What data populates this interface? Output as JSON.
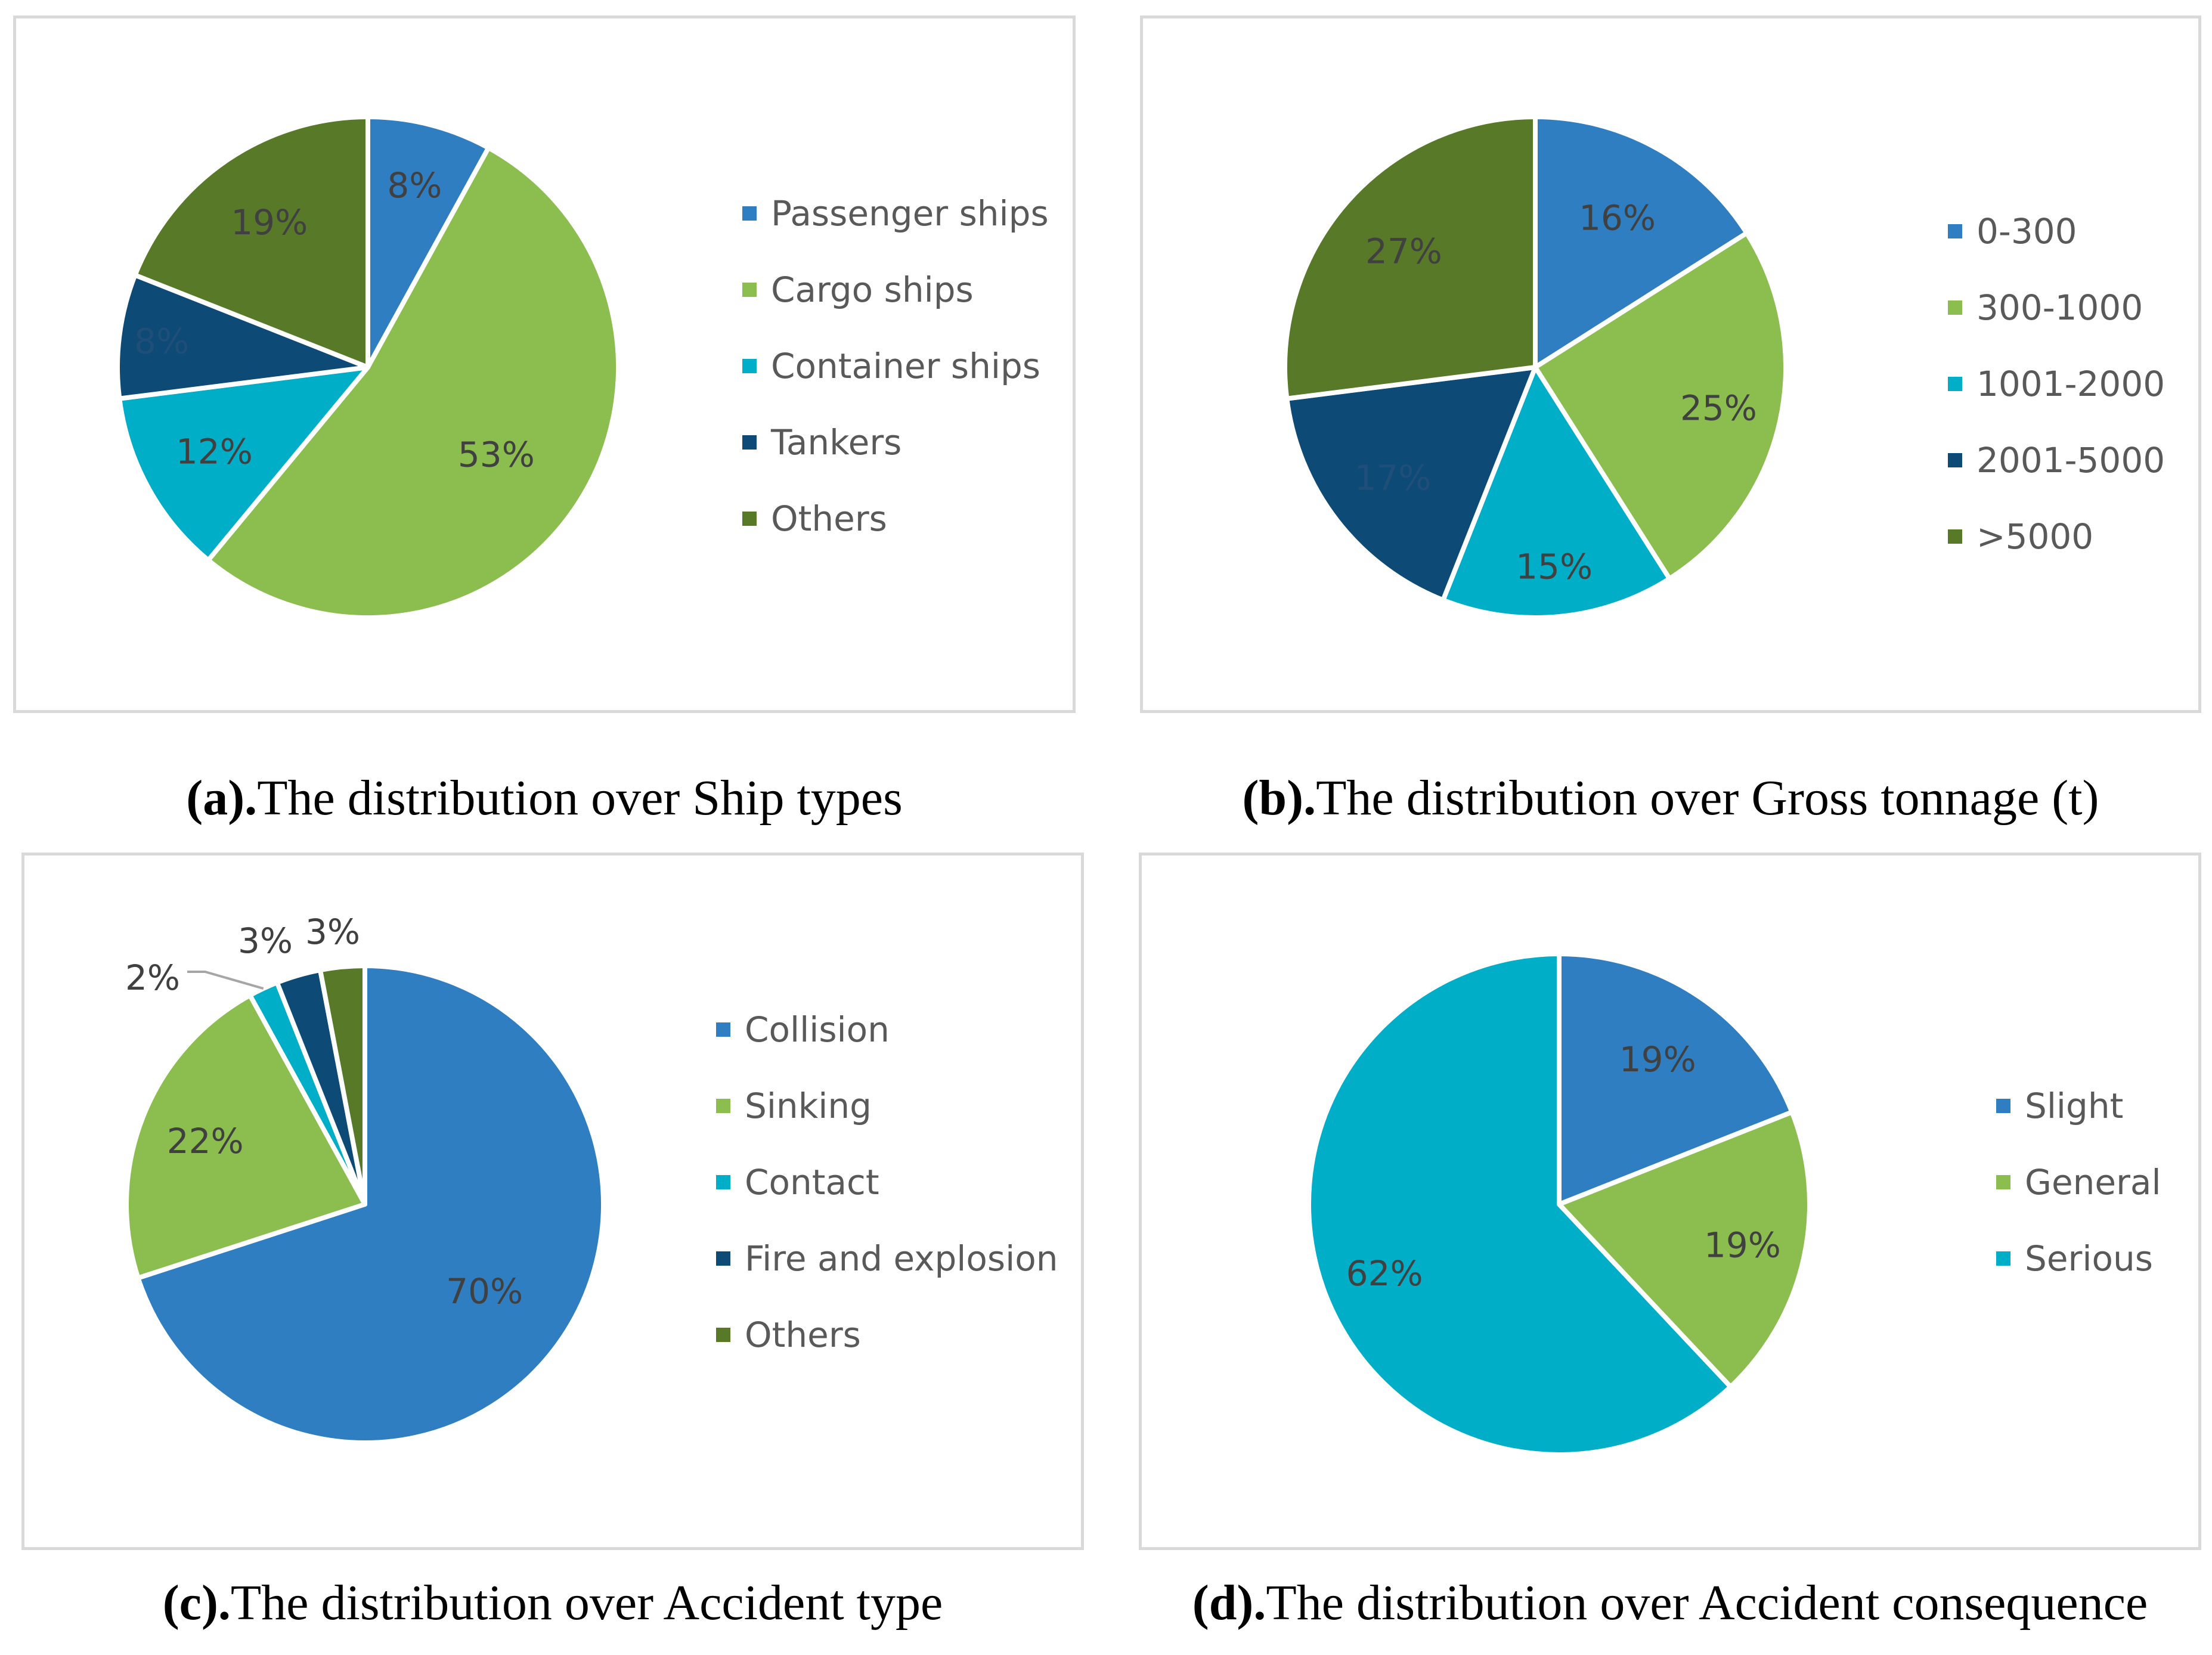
{
  "chart_data": [
    {
      "type": "pie",
      "caption_prefix": "(a).",
      "caption_text": "The distribution over Ship types",
      "categories": [
        "Passenger ships",
        "Cargo ships",
        "Container ships",
        "Tankers",
        "Others"
      ],
      "values": [
        8,
        53,
        12,
        8,
        19
      ],
      "labels": [
        "8%",
        "53%",
        "12%",
        "8%",
        "19%"
      ],
      "colors": [
        "#2e7ec1",
        "#8bbd4f",
        "#00aec7",
        "#0d4a75",
        "#577928"
      ],
      "label_colors": [
        "#404040",
        "#404040",
        "#404040",
        "#1f4e79",
        "#404040"
      ],
      "legend_position": "right"
    },
    {
      "type": "pie",
      "caption_prefix": "(b).",
      "caption_text": "The distribution over Gross tonnage (t)",
      "categories": [
        "0-300",
        "300-1000",
        "1001-2000",
        "2001-5000",
        ">5000"
      ],
      "values": [
        16,
        25,
        15,
        17,
        27
      ],
      "labels": [
        "16%",
        "25%",
        "15%",
        "17%",
        "27%"
      ],
      "colors": [
        "#2e7ec1",
        "#8bbd4f",
        "#00aec7",
        "#0d4a75",
        "#577928"
      ],
      "label_colors": [
        "#404040",
        "#404040",
        "#404040",
        "#1f4e79",
        "#404040"
      ],
      "legend_position": "right"
    },
    {
      "type": "pie",
      "caption_prefix": "(c).",
      "caption_text": "The distribution over Accident type",
      "categories": [
        "Collision",
        "Sinking",
        "Contact",
        "Fire and explosion",
        "Others"
      ],
      "values": [
        70,
        22,
        2,
        3,
        3
      ],
      "labels": [
        "70%",
        "22%",
        "2%",
        "3%",
        "3%"
      ],
      "colors": [
        "#2e7ec1",
        "#8bbd4f",
        "#00aec7",
        "#0d4a75",
        "#577928"
      ],
      "label_colors": [
        "#404040",
        "#404040",
        "#404040",
        "#404040",
        "#404040"
      ],
      "legend_position": "right"
    },
    {
      "type": "pie",
      "caption_prefix": "(d).",
      "caption_text": "The distribution over Accident consequence",
      "categories": [
        "Slight",
        "General",
        "Serious"
      ],
      "values": [
        19,
        19,
        62
      ],
      "labels": [
        "19%",
        "19%",
        "62%"
      ],
      "colors": [
        "#2e7ec1",
        "#8bbd4f",
        "#00aec7"
      ],
      "label_colors": [
        "#404040",
        "#404040",
        "#404040"
      ],
      "legend_position": "right"
    }
  ]
}
